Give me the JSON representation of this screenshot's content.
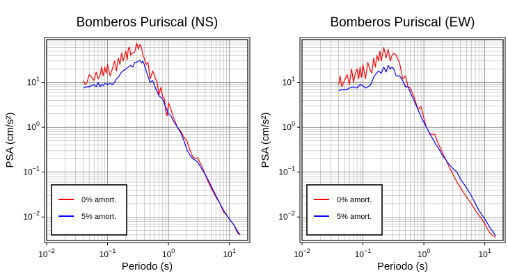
{
  "colors": {
    "undamped": "#ff0000",
    "damped": "#0000ff",
    "frame": "#000000"
  },
  "legend": {
    "undamped_label": "0% amort.",
    "damped_label": "5% amort.",
    "placement": "bottom-left"
  },
  "chart_data": [
    {
      "type": "line",
      "title": "Bomberos Puriscal (NS)",
      "xlabel": "Periodo (s)",
      "ylabel": "PSA (cm/s²)",
      "xscale": "log",
      "yscale": "log",
      "xlim": [
        0.01,
        20
      ],
      "ylim": [
        0.003,
        90
      ],
      "grid": true,
      "x_ticks": [
        {
          "base": "10",
          "exp": "−2"
        },
        {
          "base": "10",
          "exp": "−1"
        },
        {
          "base": "10",
          "exp": "0"
        },
        {
          "base": "10",
          "exp": "1"
        }
      ],
      "y_ticks": [
        {
          "base": "10",
          "exp": "−2"
        },
        {
          "base": "10",
          "exp": "−1"
        },
        {
          "base": "10",
          "exp": "0"
        },
        {
          "base": "10",
          "exp": "1"
        }
      ],
      "series": [
        {
          "name": "0% amort.",
          "color": "#ff0000",
          "x": [
            0.04,
            0.043,
            0.046,
            0.05,
            0.055,
            0.06,
            0.065,
            0.07,
            0.075,
            0.08,
            0.085,
            0.09,
            0.095,
            0.1,
            0.11,
            0.12,
            0.13,
            0.14,
            0.15,
            0.16,
            0.17,
            0.18,
            0.19,
            0.2,
            0.21,
            0.22,
            0.23,
            0.24,
            0.25,
            0.26,
            0.28,
            0.3,
            0.32,
            0.34,
            0.36,
            0.38,
            0.4,
            0.43,
            0.46,
            0.5,
            0.55,
            0.6,
            0.65,
            0.7,
            0.75,
            0.8,
            0.85,
            0.9,
            0.95,
            1.0,
            1.1,
            1.2,
            1.3,
            1.4,
            1.5,
            1.6,
            1.8,
            2.0,
            2.2,
            2.5,
            2.8,
            3.0,
            3.5,
            4.0,
            4.5,
            5.0,
            6.0,
            7.0,
            8.0,
            9.0,
            10,
            11,
            12,
            13,
            14,
            15
          ],
          "y": [
            11,
            9,
            10,
            15,
            13,
            11,
            17,
            12,
            14,
            22,
            14,
            22,
            16,
            25,
            14,
            20,
            30,
            18,
            35,
            25,
            45,
            30,
            40,
            50,
            32,
            58,
            60,
            40,
            45,
            45,
            48,
            75,
            55,
            70,
            60,
            40,
            35,
            25,
            28,
            12,
            18,
            13,
            10,
            5.3,
            7.8,
            4.8,
            4.5,
            2.3,
            1.8,
            3.5,
            2.5,
            1.7,
            1.3,
            1.0,
            0.9,
            0.8,
            0.6,
            0.5,
            0.34,
            0.22,
            0.2,
            0.21,
            0.14,
            0.09,
            0.06,
            0.045,
            0.028,
            0.02,
            0.013,
            0.011,
            0.009,
            0.0075,
            0.0065,
            0.005,
            0.0042,
            0.0042
          ]
        },
        {
          "name": "5% amort.",
          "color": "#0000ff",
          "x": [
            0.04,
            0.045,
            0.05,
            0.055,
            0.06,
            0.065,
            0.07,
            0.075,
            0.08,
            0.085,
            0.09,
            0.1,
            0.11,
            0.12,
            0.13,
            0.14,
            0.15,
            0.16,
            0.17,
            0.18,
            0.2,
            0.22,
            0.24,
            0.26,
            0.28,
            0.3,
            0.32,
            0.34,
            0.36,
            0.38,
            0.4,
            0.45,
            0.5,
            0.55,
            0.6,
            0.7,
            0.8,
            0.9,
            1.0,
            1.1,
            1.2,
            1.4,
            1.6,
            1.8,
            2.0,
            2.2,
            2.5,
            3.0,
            3.5,
            4.0,
            5.0,
            6.0,
            7.0,
            8.0,
            10,
            12,
            14,
            15
          ],
          "y": [
            7.5,
            8,
            8,
            8.5,
            9,
            8,
            10,
            8,
            9,
            8.5,
            9.5,
            9,
            9.5,
            9,
            10,
            12,
            13,
            15,
            17,
            18,
            20,
            22,
            24,
            22,
            28,
            28,
            30,
            31,
            27,
            30,
            25,
            15,
            10,
            11,
            8,
            5,
            4.3,
            2.8,
            2,
            1.8,
            1.4,
            1.0,
            0.75,
            0.5,
            0.32,
            0.25,
            0.2,
            0.17,
            0.12,
            0.09,
            0.05,
            0.03,
            0.02,
            0.014,
            0.009,
            0.0065,
            0.0045,
            0.004
          ]
        }
      ]
    },
    {
      "type": "line",
      "title": "Bomberos Puriscal (EW)",
      "xlabel": "Periodo (s)",
      "ylabel": "PSA (cm/s²)",
      "xscale": "log",
      "yscale": "log",
      "xlim": [
        0.01,
        20
      ],
      "ylim": [
        0.003,
        90
      ],
      "grid": true,
      "x_ticks": [
        {
          "base": "10",
          "exp": "−2"
        },
        {
          "base": "10",
          "exp": "−1"
        },
        {
          "base": "10",
          "exp": "0"
        },
        {
          "base": "10",
          "exp": "1"
        }
      ],
      "y_ticks": [
        {
          "base": "10",
          "exp": "−2"
        },
        {
          "base": "10",
          "exp": "−1"
        },
        {
          "base": "10",
          "exp": "0"
        },
        {
          "base": "10",
          "exp": "1"
        }
      ],
      "series": [
        {
          "name": "0% amort.",
          "color": "#ff0000",
          "x": [
            0.04,
            0.042,
            0.045,
            0.048,
            0.05,
            0.055,
            0.06,
            0.065,
            0.07,
            0.075,
            0.08,
            0.085,
            0.09,
            0.095,
            0.1,
            0.11,
            0.12,
            0.13,
            0.14,
            0.15,
            0.16,
            0.17,
            0.18,
            0.19,
            0.2,
            0.22,
            0.24,
            0.26,
            0.28,
            0.3,
            0.32,
            0.35,
            0.4,
            0.45,
            0.5,
            0.55,
            0.6,
            0.7,
            0.8,
            0.9,
            1.0,
            1.1,
            1.2,
            1.3,
            1.5,
            1.7,
            2.0,
            2.3,
            2.6,
            3.0,
            3.5,
            4.0,
            5.0,
            6.0,
            7.0,
            8.0,
            9.0,
            10,
            11,
            12,
            13,
            14,
            15
          ],
          "y": [
            9,
            14,
            8,
            10,
            11,
            15,
            9,
            20,
            10,
            16,
            20,
            12,
            22,
            13,
            25,
            12,
            28,
            20,
            16,
            35,
            22,
            40,
            30,
            50,
            30,
            60,
            35,
            55,
            30,
            40,
            45,
            40,
            27,
            12,
            14,
            8,
            7.5,
            4.5,
            2.5,
            2.9,
            1.6,
            1.0,
            0.8,
            0.7,
            0.7,
            0.45,
            0.28,
            0.19,
            0.13,
            0.09,
            0.06,
            0.045,
            0.028,
            0.02,
            0.014,
            0.011,
            0.009,
            0.007,
            0.0055,
            0.0045,
            0.004,
            0.0038,
            0.0035
          ]
        },
        {
          "name": "5% amort.",
          "color": "#0000ff",
          "x": [
            0.04,
            0.045,
            0.05,
            0.055,
            0.06,
            0.07,
            0.08,
            0.09,
            0.1,
            0.11,
            0.12,
            0.13,
            0.14,
            0.15,
            0.16,
            0.18,
            0.2,
            0.22,
            0.24,
            0.26,
            0.28,
            0.3,
            0.32,
            0.35,
            0.4,
            0.45,
            0.5,
            0.55,
            0.6,
            0.7,
            0.8,
            0.9,
            1.0,
            1.2,
            1.4,
            1.6,
            1.8,
            2.0,
            2.5,
            3.0,
            3.5,
            4.0,
            5.0,
            6.0,
            7.0,
            8.0,
            10,
            12,
            14,
            15
          ],
          "y": [
            6.5,
            7,
            7,
            7,
            7.5,
            8,
            7.5,
            9,
            8.5,
            7.5,
            8,
            8.5,
            10,
            13,
            15,
            18,
            16,
            22,
            17,
            24,
            20,
            22,
            20,
            14,
            14,
            11,
            8,
            8,
            6,
            3.8,
            2.5,
            1.7,
            1.3,
            0.8,
            0.55,
            0.4,
            0.32,
            0.24,
            0.16,
            0.12,
            0.1,
            0.07,
            0.045,
            0.03,
            0.02,
            0.014,
            0.009,
            0.006,
            0.0045,
            0.0038
          ]
        }
      ]
    }
  ]
}
